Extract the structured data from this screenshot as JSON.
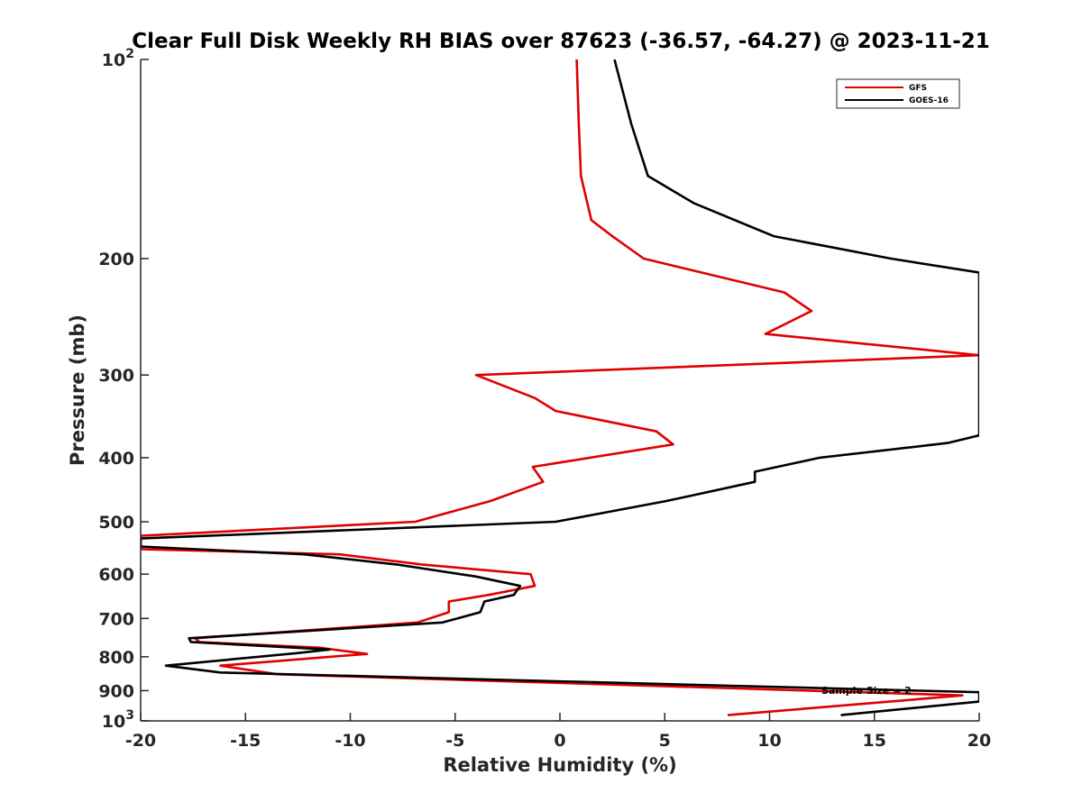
{
  "chart_data": {
    "type": "line",
    "title": "Clear Full Disk Weekly RH BIAS over 87623 (-36.57, -64.27) @ 2023-11-21",
    "xlabel": "Relative Humidity (%)",
    "ylabel": "Pressure (mb)",
    "xlim": [
      -20,
      20
    ],
    "ylim": [
      100,
      1000
    ],
    "yscale": "log",
    "y_reversed": true,
    "grid": false,
    "legend_position": "top-right",
    "x_ticks": [
      "-20",
      "-15",
      "-10",
      "-5",
      "0",
      "5",
      "10",
      "15",
      "20"
    ],
    "y_ticks": [
      {
        "value": 100,
        "base": "10",
        "exp": "2"
      },
      {
        "value": 200,
        "label": "200"
      },
      {
        "value": 300,
        "label": "300"
      },
      {
        "value": 400,
        "label": "400"
      },
      {
        "value": 500,
        "label": "500"
      },
      {
        "value": 600,
        "label": "600"
      },
      {
        "value": 700,
        "label": "700"
      },
      {
        "value": 800,
        "label": "800"
      },
      {
        "value": 900,
        "label": "900"
      },
      {
        "value": 1000,
        "base": "10",
        "exp": "3"
      }
    ],
    "annotation": "Sample Size = 2",
    "series": [
      {
        "name": "GFS",
        "color": "#e00000",
        "points": [
          [
            0.8,
            100
          ],
          [
            0.9,
            125
          ],
          [
            1.0,
            150
          ],
          [
            1.5,
            175
          ],
          [
            2.5,
            185
          ],
          [
            4.0,
            200
          ],
          [
            10.7,
            225
          ],
          [
            12.0,
            240
          ],
          [
            9.8,
            260
          ],
          [
            20.0,
            280
          ],
          [
            -4.0,
            300
          ],
          [
            -1.2,
            325
          ],
          [
            -0.2,
            340
          ],
          [
            4.6,
            365
          ],
          [
            5.4,
            382
          ],
          [
            -1.3,
            413
          ],
          [
            -0.8,
            435
          ],
          [
            -3.3,
            465
          ],
          [
            -6.9,
            500
          ],
          [
            -20.0,
            525
          ],
          [
            -20.0,
            550
          ],
          [
            -10.5,
            560
          ],
          [
            -6.6,
            580
          ],
          [
            -1.4,
            600
          ],
          [
            -1.2,
            625
          ],
          [
            -3.4,
            645
          ],
          [
            -5.3,
            660
          ],
          [
            -5.3,
            685
          ],
          [
            -6.8,
            710
          ],
          [
            -17.4,
            750
          ],
          [
            -17.2,
            760
          ],
          [
            -11.5,
            775
          ],
          [
            -9.2,
            792
          ],
          [
            -11.0,
            800
          ],
          [
            -16.2,
            825
          ],
          [
            -13.5,
            850
          ],
          [
            19.2,
            915
          ],
          [
            17.5,
            925
          ],
          [
            8.0,
            980
          ]
        ]
      },
      {
        "name": "GOES-16",
        "color": "#000000",
        "points": [
          [
            2.6,
            100
          ],
          [
            3.4,
            125
          ],
          [
            4.2,
            150
          ],
          [
            6.4,
            165
          ],
          [
            10.2,
            185
          ],
          [
            15.8,
            200
          ],
          [
            20.0,
            210
          ],
          [
            20.0,
            370
          ],
          [
            18.5,
            380
          ],
          [
            12.4,
            400
          ],
          [
            9.3,
            420
          ],
          [
            9.3,
            435
          ],
          [
            5.1,
            465
          ],
          [
            -0.2,
            500
          ],
          [
            -20.0,
            530
          ],
          [
            -20.0,
            545
          ],
          [
            -12.2,
            560
          ],
          [
            -7.8,
            580
          ],
          [
            -4.0,
            605
          ],
          [
            -1.9,
            625
          ],
          [
            -2.2,
            645
          ],
          [
            -3.6,
            660
          ],
          [
            -3.8,
            685
          ],
          [
            -5.6,
            710
          ],
          [
            -17.7,
            750
          ],
          [
            -17.6,
            760
          ],
          [
            -11.0,
            780
          ],
          [
            -12.6,
            790
          ],
          [
            -18.8,
            825
          ],
          [
            -16.2,
            845
          ],
          [
            20.0,
            905
          ],
          [
            20.0,
            935
          ],
          [
            17.8,
            950
          ],
          [
            13.4,
            980
          ]
        ]
      }
    ]
  }
}
